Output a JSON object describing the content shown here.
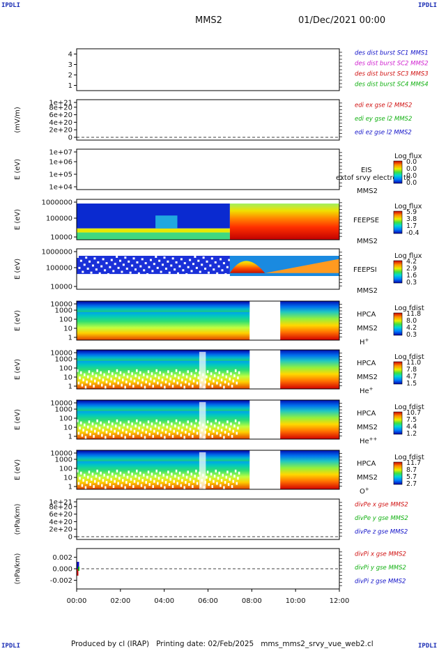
{
  "header": {
    "corner_label": "IPDLI",
    "spacecraft": "MMS2",
    "datetime": "01/Dec/2021 00:00"
  },
  "footer": {
    "produced_by": "Produced by cl (IRAP)",
    "printing_date": "Printing date: 02/Feb/2025",
    "file": "mms_mms2_srvy_vue_web2.cl"
  },
  "time_axis": {
    "range_hours": [
      0,
      12
    ],
    "ticks": [
      "00:00",
      "02:00",
      "04:00",
      "06:00",
      "08:00",
      "10:00",
      "12:00"
    ]
  },
  "colors": {
    "mms1": "#1010c8",
    "mms2": "#d020d0",
    "mms3": "#d01010",
    "mms4": "#10b010",
    "red": "#d01010",
    "green": "#10b010",
    "blue": "#1010c8"
  },
  "panels": [
    {
      "id": "des-dist",
      "type": "line",
      "yticks": [
        "4",
        "3",
        "2",
        "1"
      ],
      "ylim": [
        0.5,
        4.5
      ],
      "ylabel": "",
      "legend": [
        {
          "text": "des dist burst SC1 MMS1",
          "color": "#1010c8"
        },
        {
          "text": "des dist burst SC2 MMS2",
          "color": "#d020d0"
        },
        {
          "text": "des dist burst SC3 MMS3",
          "color": "#d01010"
        },
        {
          "text": "des dist burst SC4 MMS4",
          "color": "#10b010"
        }
      ]
    },
    {
      "id": "edi-e",
      "type": "line",
      "yticks": [
        "1e+21",
        "8e+20",
        "6e+20",
        "4e+20",
        "2e+20",
        "0"
      ],
      "ylim": [
        0,
        1e+21
      ],
      "ylabel": "(mV/m)",
      "legend": [
        {
          "text": "edi ex gse l2 MMS2",
          "color": "#d01010"
        },
        {
          "text": "edi ey gse l2 MMS2",
          "color": "#10b010"
        },
        {
          "text": "edi ez gse l2 MMS2",
          "color": "#1010c8"
        }
      ]
    },
    {
      "id": "eis",
      "type": "heatmap",
      "yticks": [
        "1e+07",
        "1e+06",
        "1e+05",
        "1e+04"
      ],
      "ylabel": "E (eV)",
      "inst": [
        "EIS",
        "MMS2"
      ],
      "overlay": "extof srvy electron to",
      "colorbar": {
        "title": "Log flux",
        "ticks": [
          "0.0",
          "0.0",
          "0.0",
          "0.0"
        ]
      }
    },
    {
      "id": "feeps-e",
      "type": "heatmap",
      "yticks": [
        "1000000",
        "100000",
        "10000"
      ],
      "ylabel": "E (eV)",
      "inst": [
        "FEEPSE",
        "MMS2"
      ],
      "colorbar": {
        "title": "Log flux",
        "ticks": [
          "5.9",
          "3.8",
          "1.7",
          "-0.4"
        ]
      }
    },
    {
      "id": "feeps-i",
      "type": "heatmap",
      "yticks": [
        "1000000",
        "100000",
        "10000"
      ],
      "ylabel": "E (eV)",
      "inst": [
        "FEEPSI",
        "MMS2"
      ],
      "colorbar": {
        "title": "Log flux",
        "ticks": [
          "4.2",
          "2.9",
          "1.6",
          "0.3"
        ]
      }
    },
    {
      "id": "hpca-h",
      "type": "heatmap",
      "yticks": [
        "10000",
        "1000",
        "100",
        "10",
        "1"
      ],
      "ylabel": "E (eV)",
      "inst": [
        "HPCA",
        "MMS2"
      ],
      "species": {
        "base": "H",
        "sup": "+"
      },
      "colorbar": {
        "title": "Log fdist",
        "ticks": [
          "11.8",
          "8.0",
          "4.2",
          "0.3"
        ]
      }
    },
    {
      "id": "hpca-he",
      "type": "heatmap",
      "yticks": [
        "10000",
        "1000",
        "100",
        "10",
        "1"
      ],
      "ylabel": "E (eV)",
      "inst": [
        "HPCA",
        "MMS2"
      ],
      "species": {
        "base": "He",
        "sup": "+"
      },
      "colorbar": {
        "title": "Log fdist",
        "ticks": [
          "11.0",
          "7.8",
          "4.7",
          "1.5"
        ]
      }
    },
    {
      "id": "hpca-hepp",
      "type": "heatmap",
      "yticks": [
        "10000",
        "1000",
        "100",
        "10",
        "1"
      ],
      "ylabel": "E (eV)",
      "inst": [
        "HPCA",
        "MMS2"
      ],
      "species": {
        "base": "He",
        "sup": "++"
      },
      "colorbar": {
        "title": "Log fdist",
        "ticks": [
          "10.7",
          "7.5",
          "4.4",
          "1.2"
        ]
      }
    },
    {
      "id": "hpca-o",
      "type": "heatmap",
      "yticks": [
        "10000",
        "1000",
        "100",
        "10",
        "1"
      ],
      "ylabel": "E (eV)",
      "inst": [
        "HPCA",
        "MMS2"
      ],
      "species": {
        "base": "O",
        "sup": "+"
      },
      "colorbar": {
        "title": "Log fdist",
        "ticks": [
          "11.7",
          "8.7",
          "5.7",
          "2.7"
        ]
      }
    },
    {
      "id": "divpe",
      "type": "line",
      "yticks": [
        "1e+21",
        "8e+20",
        "6e+20",
        "4e+20",
        "2e+20",
        "0"
      ],
      "ylim": [
        0,
        1e+21
      ],
      "ylabel": "(nPa/km)",
      "legend": [
        {
          "text": "divPe x gse MMS2",
          "color": "#d01010"
        },
        {
          "text": "divPe y gse MMS2",
          "color": "#10b010"
        },
        {
          "text": "divPe z gse MMS2",
          "color": "#1010c8"
        }
      ]
    },
    {
      "id": "divpi",
      "type": "line",
      "yticks": [
        "0.002",
        "0.000",
        "-0.002"
      ],
      "ylim": [
        -0.0035,
        0.0035
      ],
      "ylabel": "(nPa/km)",
      "legend": [
        {
          "text": "divPi x gse MMS2",
          "color": "#d01010"
        },
        {
          "text": "divPi y gse MMS2",
          "color": "#10b010"
        },
        {
          "text": "divPi z gse MMS2",
          "color": "#1010c8"
        }
      ]
    }
  ],
  "chart_data": {
    "type": "heatmap",
    "title": "MMS2 01/Dec/2021 00:00",
    "x_range": [
      "00:00",
      "12:00"
    ],
    "data_gaps_hours": [
      [
        7.9,
        9.3
      ]
    ],
    "feeps_transition_hour": 7.0,
    "divPi_values_near_start": [
      0.0012,
      -0.0012
    ],
    "zero_reference_lines": [
      "edi-e",
      "divpe",
      "divpi"
    ]
  }
}
